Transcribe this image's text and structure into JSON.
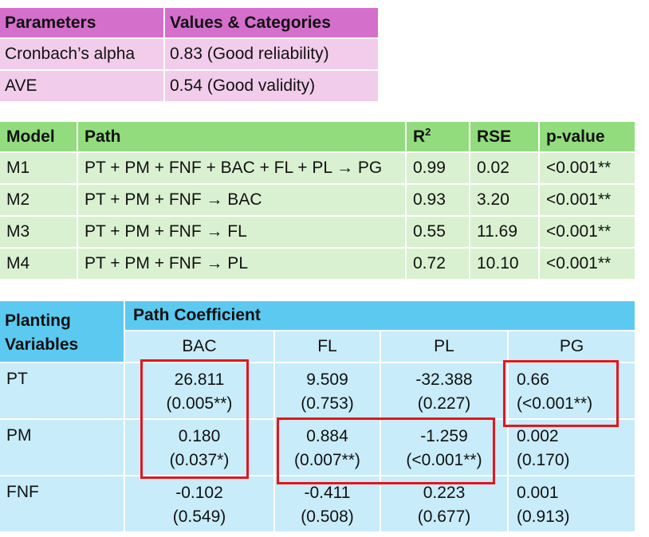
{
  "reliability_table": {
    "headers": [
      "Parameters",
      "Values & Categories"
    ],
    "rows": [
      {
        "param": "Cronbach’s alpha",
        "value": "0.83 (Good reliability)"
      },
      {
        "param": "AVE",
        "value": "0.54 (Good validity)"
      }
    ]
  },
  "model_table": {
    "headers": {
      "model": "Model",
      "path": "Path",
      "r2_base": "R",
      "r2_sup": "2",
      "rse": "RSE",
      "pvalue": "p-value"
    },
    "rows": [
      {
        "model": "M1",
        "path": "PT + PM + FNF + BAC + FL + PL → PG",
        "r2": "0.99",
        "rse": "0.02",
        "p": "<0.001**"
      },
      {
        "model": "M2",
        "path": "PT + PM + FNF  → BAC",
        "r2": "0.93",
        "rse": "3.20",
        "p": "<0.001**"
      },
      {
        "model": "M3",
        "path": "PT + PM + FNF  → FL",
        "r2": "0.55",
        "rse": "11.69",
        "p": "<0.001**"
      },
      {
        "model": "M4",
        "path": "PT + PM + FNF → PL",
        "r2": "0.72",
        "rse": "10.10",
        "p": "<0.001**"
      }
    ]
  },
  "coef_table": {
    "row_header_line1": "Planting",
    "row_header_line2": "Variables",
    "group_header": "Path Coefficient",
    "columns": [
      "BAC",
      "FL",
      "PL",
      "PG"
    ],
    "rows": [
      {
        "var": "PT",
        "cells": [
          {
            "coef": "26.811",
            "p": "(0.005**)"
          },
          {
            "coef": "9.509",
            "p": "(0.753)"
          },
          {
            "coef": "-32.388",
            "p": "(0.227)"
          },
          {
            "coef": "0.66",
            "p": "(<0.001**)"
          }
        ]
      },
      {
        "var": "PM",
        "cells": [
          {
            "coef": "0.180",
            "p": "(0.037*)"
          },
          {
            "coef": "0.884",
            "p": "(0.007**)"
          },
          {
            "coef": "-1.259",
            "p": "(<0.001**)"
          },
          {
            "coef": "0.002",
            "p": "(0.170)"
          }
        ]
      },
      {
        "var": "FNF",
        "cells": [
          {
            "coef": "-0.102",
            "p": "(0.549)"
          },
          {
            "coef": "-0.411",
            "p": "(0.508)"
          },
          {
            "coef": "0.223",
            "p": "(0.677)"
          },
          {
            "coef": "0.001",
            "p": "(0.913)"
          }
        ]
      }
    ]
  },
  "highlight_color": "#e4161c"
}
